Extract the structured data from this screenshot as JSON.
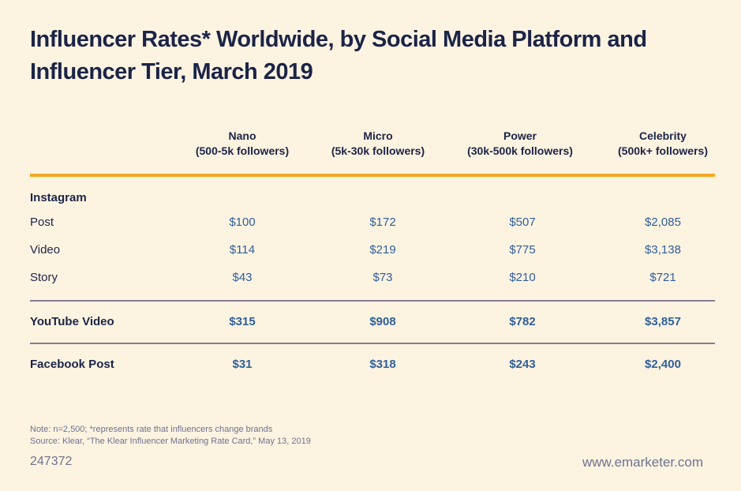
{
  "chart_data": {
    "type": "table",
    "title": "Influencer Rates* Worldwide, by Social Media Platform and Influencer Tier, March 2019",
    "columns": [
      {
        "name": "Nano",
        "sub": "(500-5k followers)"
      },
      {
        "name": "Micro",
        "sub": "(5k-30k followers)"
      },
      {
        "name": "Power",
        "sub": "(30k-500k followers)"
      },
      {
        "name": "Celebrity",
        "sub": "(500k+ followers)"
      }
    ],
    "groups": [
      {
        "label": "Instagram",
        "rows": [
          {
            "label": "Post",
            "values": [
              "$100",
              "$172",
              "$507",
              "$2,085"
            ]
          },
          {
            "label": "Video",
            "values": [
              "$114",
              "$219",
              "$775",
              "$3,138"
            ]
          },
          {
            "label": "Story",
            "values": [
              "$43",
              "$73",
              "$210",
              "$721"
            ]
          }
        ]
      }
    ],
    "summary_rows": [
      {
        "label": "YouTube Video",
        "values": [
          "$315",
          "$908",
          "$782",
          "$3,857"
        ]
      },
      {
        "label": "Facebook Post",
        "values": [
          "$31",
          "$318",
          "$243",
          "$2,400"
        ]
      }
    ]
  },
  "notes": {
    "note": "Note: n=2,500; *represents rate that influencers change brands",
    "source": "Source: Klear, “The Klear Influencer Marketing Rate Card,” May 13, 2019"
  },
  "chart_id": "247372",
  "website": "www.emarketer.com",
  "colors": {
    "title": "#1b2447",
    "value": "#2f5f9a",
    "header_rule": "#f5a623",
    "divider_rule": "#8a7a96",
    "background": "#fdf3e1"
  }
}
